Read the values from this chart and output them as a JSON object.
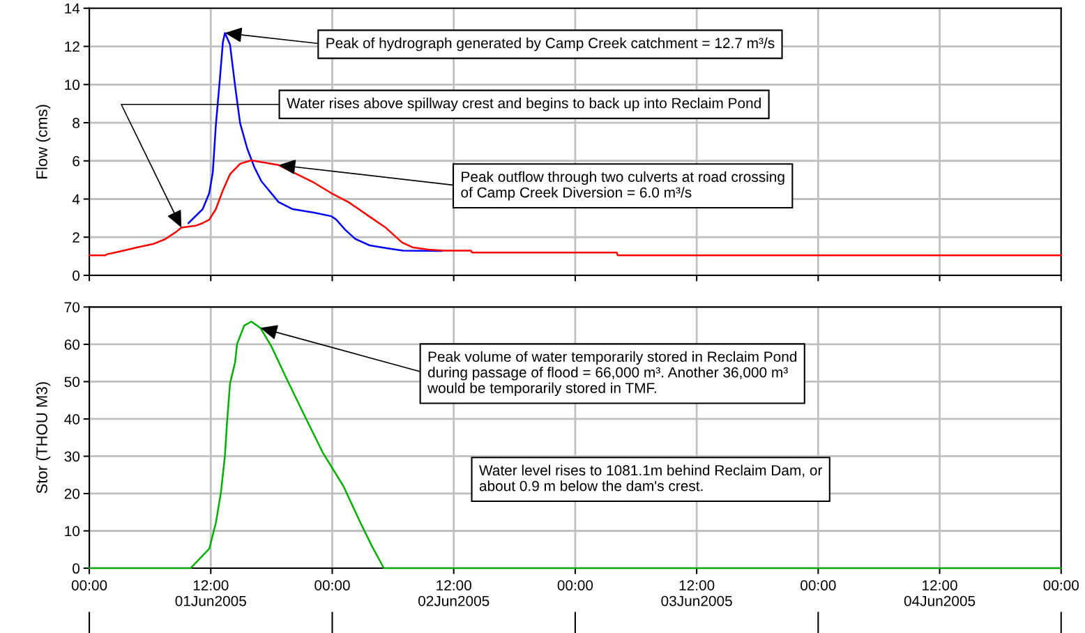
{
  "chart_data": [
    {
      "type": "line",
      "ylabel": "Flow (cms)",
      "xlim": [
        "2005-06-01T00:00",
        "2005-06-05T00:00"
      ],
      "ylim": [
        0,
        14
      ],
      "yticks": [
        0,
        2,
        4,
        6,
        8,
        10,
        12,
        14
      ],
      "xticks": [
        "2005-06-01T00:00",
        "2005-06-01T12:00",
        "2005-06-02T00:00",
        "2005-06-02T12:00",
        "2005-06-03T00:00",
        "2005-06-03T12:00",
        "2005-06-04T00:00",
        "2005-06-04T12:00",
        "2005-06-05T00:00"
      ],
      "tick_labels": "y",
      "grid": true,
      "series": [
        {
          "color": "#0000ff",
          "x": [
            "2005-06-01T09:48",
            "2005-06-01T11:12",
            "2005-06-01T11:51",
            "2005-06-01T12:12",
            "2005-06-01T12:30",
            "2005-06-01T12:54",
            "2005-06-01T13:12",
            "2005-06-01T13:24",
            "2005-06-01T13:54",
            "2005-06-01T14:24",
            "2005-06-01T14:54",
            "2005-06-01T15:36",
            "2005-06-01T16:18",
            "2005-06-01T17:00",
            "2005-06-01T18:42",
            "2005-06-01T20:06",
            "2005-06-01T22:12",
            "2005-06-01T23:54",
            "2005-06-02T00:24",
            "2005-06-02T01:18",
            "2005-06-02T02:18",
            "2005-06-02T03:42",
            "2005-06-02T05:48",
            "2005-06-02T07:00",
            "2005-06-02T10:48"
          ],
          "values": [
            2.74,
            3.47,
            4.31,
            5.4,
            7.86,
            10.3,
            12.24,
            12.7,
            12.1,
            9.94,
            7.97,
            6.65,
            5.67,
            4.93,
            3.84,
            3.47,
            3.29,
            3.1,
            2.92,
            2.38,
            1.9,
            1.57,
            1.39,
            1.3,
            1.28
          ]
        },
        {
          "color": "#ff0000",
          "x": [
            "2005-06-01T00:00",
            "2005-06-01T01:36",
            "2005-06-01T01:42",
            "2005-06-01T03:00",
            "2005-06-01T05:00",
            "2005-06-01T06:18",
            "2005-06-01T07:30",
            "2005-06-01T08:30",
            "2005-06-01T09:06",
            "2005-06-01T10:30",
            "2005-06-01T11:12",
            "2005-06-01T11:51",
            "2005-06-01T12:30",
            "2005-06-01T13:12",
            "2005-06-01T13:54",
            "2005-06-01T14:54",
            "2005-06-01T16:00",
            "2005-06-01T18:42",
            "2005-06-01T22:12",
            "2005-06-01T23:54",
            "2005-06-02T01:36",
            "2005-06-02T03:54",
            "2005-06-02T05:18",
            "2005-06-02T06:54",
            "2005-06-02T08:00",
            "2005-06-02T09:30",
            "2005-06-02T11:00",
            "2005-06-02T13:42",
            "2005-06-02T13:48",
            "2005-06-03T04:06",
            "2005-06-03T04:12",
            "2005-06-05T00:00"
          ],
          "values": [
            1.05,
            1.05,
            1.1,
            1.25,
            1.5,
            1.64,
            1.9,
            2.25,
            2.5,
            2.6,
            2.74,
            2.92,
            3.47,
            4.46,
            5.3,
            5.85,
            6.03,
            5.78,
            4.86,
            4.31,
            3.84,
            3.0,
            2.49,
            1.72,
            1.46,
            1.35,
            1.3,
            1.3,
            1.2,
            1.2,
            1.05,
            1.05
          ]
        }
      ],
      "annotations": [
        {
          "text": "Peak of hydrograph generated by Camp Creek catchment = 12.7 m³/s",
          "x": "2005-06-01T13:24",
          "y": 12.7
        },
        {
          "text": "Water rises above spillway crest and begins to back up into Reclaim Pond",
          "x": "2005-06-01T09:06",
          "y": 2.5
        },
        {
          "text": "Peak outflow through two culverts at road crossing\nof Camp Creek Diversion = 6.0 m³/s",
          "x": "2005-06-01T18:42",
          "y": 5.78
        }
      ]
    },
    {
      "type": "line",
      "ylabel": "Stor (THOU M3)",
      "xlim": [
        "2005-06-01T00:00",
        "2005-06-05T00:00"
      ],
      "ylim": [
        0,
        70
      ],
      "yticks": [
        0,
        10,
        20,
        30,
        40,
        50,
        60,
        70
      ],
      "xticks": [
        {
          "value": "2005-06-01T00:00",
          "label": "00:00"
        },
        {
          "value": "2005-06-01T12:00",
          "label": "12:00\n01Jun2005"
        },
        {
          "value": "2005-06-02T00:00",
          "label": "00:00"
        },
        {
          "value": "2005-06-02T12:00",
          "label": "12:00\n02Jun2005"
        },
        {
          "value": "2005-06-03T00:00",
          "label": "00:00"
        },
        {
          "value": "2005-06-03T12:00",
          "label": "12:00\n03Jun2005"
        },
        {
          "value": "2005-06-04T00:00",
          "label": "00:00"
        },
        {
          "value": "2005-06-04T12:00",
          "label": "12:00\n04Jun2005"
        },
        {
          "value": "2005-06-05T00:00",
          "label": "00:00"
        }
      ],
      "grid": true,
      "series": [
        {
          "color": "#00b000",
          "x": [
            "2005-06-01T00:00",
            "2005-06-01T10:00",
            "2005-06-01T11:51",
            "2005-06-01T12:30",
            "2005-06-01T13:00",
            "2005-06-01T13:24",
            "2005-06-01T13:36",
            "2005-06-01T13:54",
            "2005-06-01T14:24",
            "2005-06-01T14:36",
            "2005-06-01T15:18",
            "2005-06-01T16:00",
            "2005-06-01T16:54",
            "2005-06-01T18:00",
            "2005-06-01T19:24",
            "2005-06-01T21:18",
            "2005-06-01T23:06",
            "2005-06-02T01:06",
            "2005-06-02T02:48",
            "2005-06-02T03:54",
            "2005-06-02T05:06",
            "2005-06-05T00:00"
          ],
          "values": [
            0,
            0,
            5.2,
            12.1,
            20.2,
            30.2,
            38.8,
            49.5,
            55.1,
            60.1,
            65,
            66.1,
            64.4,
            59.4,
            51.3,
            40.7,
            30.8,
            22,
            12.1,
            6,
            0,
            0
          ]
        }
      ],
      "annotations": [
        {
          "text": "Peak volume of water temporarily stored in Reclaim Pond\nduring passage of flood = 66,000 m³. Another 36,000 m³\nwould be temporarily stored in TMF.",
          "x": "2005-06-01T16:54",
          "y": 64.4
        },
        "Water level rises to 1081.1m behind Reclaim Dam, or\nabout 0.9 m below the dam's crest."
      ]
    }
  ]
}
